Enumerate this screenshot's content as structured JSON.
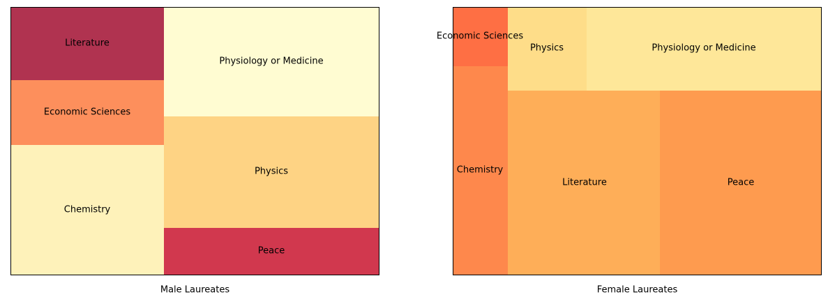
{
  "chart_data": [
    {
      "type": "treemap",
      "xlabel": "Male Laureates",
      "cells": [
        {
          "label": "Literature",
          "color": "#b03350"
        },
        {
          "label": "Economic Sciences",
          "color": "#fd8f5c"
        },
        {
          "label": "Chemistry",
          "color": "#fef2ba"
        },
        {
          "label": "Physiology or Medicine",
          "color": "#fffcd2"
        },
        {
          "label": "Physics",
          "color": "#fed384"
        },
        {
          "label": "Peace",
          "color": "#d1384e"
        }
      ]
    },
    {
      "type": "treemap",
      "xlabel": "Female Laureates",
      "cells": [
        {
          "label": "Economic Sciences",
          "color": "#fe6f44"
        },
        {
          "label": "Chemistry",
          "color": "#fe884c"
        },
        {
          "label": "Physics",
          "color": "#fedd89"
        },
        {
          "label": "Physiology or Medicine",
          "color": "#fee799"
        },
        {
          "label": "Literature",
          "color": "#feae58"
        },
        {
          "label": "Peace",
          "color": "#fe9b4f"
        }
      ]
    }
  ]
}
